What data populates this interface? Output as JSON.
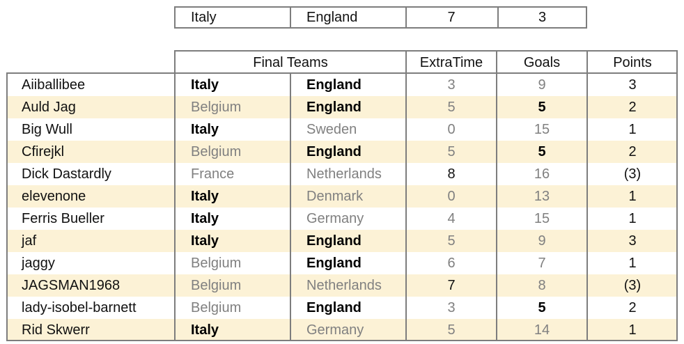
{
  "result": {
    "team1": "Italy",
    "team2": "England",
    "extra_time": "7",
    "goals": "3"
  },
  "header": {
    "final_teams": "Final Teams",
    "extra_time": "ExtraTime",
    "goals": "Goals",
    "points": "Points"
  },
  "rows": [
    {
      "name": "Aiiballibee",
      "team1": "Italy",
      "team1_bold": true,
      "team2": "England",
      "team2_bold": true,
      "extra_time": "3",
      "extra_bold": false,
      "goals": "9",
      "goals_bold": false,
      "points": "3"
    },
    {
      "name": "Auld Jag",
      "team1": "Belgium",
      "team1_bold": false,
      "team2": "England",
      "team2_bold": true,
      "extra_time": "5",
      "extra_bold": false,
      "goals": "5",
      "goals_bold": true,
      "points": "2"
    },
    {
      "name": "Big Wull",
      "team1": "Italy",
      "team1_bold": true,
      "team2": "Sweden",
      "team2_bold": false,
      "extra_time": "0",
      "extra_bold": false,
      "goals": "15",
      "goals_bold": false,
      "points": "1"
    },
    {
      "name": "Cfirejkl",
      "team1": "Belgium",
      "team1_bold": false,
      "team2": "England",
      "team2_bold": true,
      "extra_time": "5",
      "extra_bold": false,
      "goals": "5",
      "goals_bold": true,
      "points": "2"
    },
    {
      "name": "Dick Dastardly",
      "team1": "France",
      "team1_bold": false,
      "team2": "Netherlands",
      "team2_bold": false,
      "extra_time": "8",
      "extra_bold": true,
      "goals": "16",
      "goals_bold": false,
      "points": "(3)"
    },
    {
      "name": "elevenone",
      "team1": "Italy",
      "team1_bold": true,
      "team2": "Denmark",
      "team2_bold": false,
      "extra_time": "0",
      "extra_bold": false,
      "goals": "13",
      "goals_bold": false,
      "points": "1"
    },
    {
      "name": "Ferris Bueller",
      "team1": "Italy",
      "team1_bold": true,
      "team2": "Germany",
      "team2_bold": false,
      "extra_time": "4",
      "extra_bold": false,
      "goals": "15",
      "goals_bold": false,
      "points": "1"
    },
    {
      "name": "jaf",
      "team1": "Italy",
      "team1_bold": true,
      "team2": "England",
      "team2_bold": true,
      "extra_time": "5",
      "extra_bold": false,
      "goals": "9",
      "goals_bold": false,
      "points": "3"
    },
    {
      "name": "jaggy",
      "team1": "Belgium",
      "team1_bold": false,
      "team2": "England",
      "team2_bold": true,
      "extra_time": "6",
      "extra_bold": false,
      "goals": "7",
      "goals_bold": false,
      "points": "1"
    },
    {
      "name": "JAGSMAN1968",
      "team1": "Belgium",
      "team1_bold": false,
      "team2": "Netherlands",
      "team2_bold": false,
      "extra_time": "7",
      "extra_bold": true,
      "goals": "8",
      "goals_bold": false,
      "points": "(3)"
    },
    {
      "name": "lady-isobel-barnett",
      "team1": "Belgium",
      "team1_bold": false,
      "team2": "England",
      "team2_bold": true,
      "extra_time": "3",
      "extra_bold": false,
      "goals": "5",
      "goals_bold": true,
      "points": "2"
    },
    {
      "name": "Rid Skwerr",
      "team1": "Italy",
      "team1_bold": true,
      "team2": "Germany",
      "team2_bold": false,
      "extra_time": "5",
      "extra_bold": false,
      "goals": "14",
      "goals_bold": false,
      "points": "1"
    }
  ],
  "colors": {
    "stripe": "#fcf2d6",
    "border": "#7d7d7d",
    "muted_text": "#808080"
  }
}
